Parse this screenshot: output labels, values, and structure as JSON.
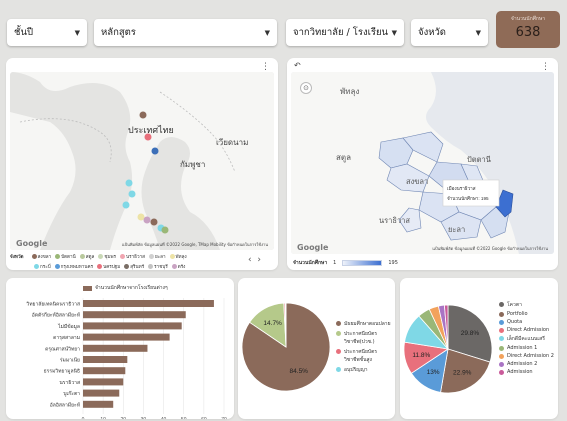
{
  "filters": {
    "level": "ชั้นปี",
    "program": "หลักสูตร",
    "source": "จากวิทยาลัย / โรงเรียน",
    "province": "จังหวัด"
  },
  "kpi": {
    "title": "จำนวนนักศึกษา",
    "value": "638"
  },
  "point_map": {
    "labels": {
      "thailand": "ประเทศไทย",
      "vietnam": "เวียดนาม",
      "cambodia": "กัมพูชา"
    },
    "attribution": "แป้นพิมพ์ลัด  ข้อมูลแผนที่ ©2022 Google, TMap Mobility  ข้อกำหนดในการใช้งาน",
    "google": "Google",
    "legend_title": "จังหวัด",
    "legend": [
      {
        "name": "สงขลา",
        "color": "#8b6a5a"
      },
      {
        "name": "ปัตตานี",
        "color": "#9ab777"
      },
      {
        "name": "สตูล",
        "color": "#b9c99d"
      },
      {
        "name": "ชุมพร",
        "color": "#c9d8b6"
      },
      {
        "name": "นราธิวาส",
        "color": "#f0a5b0"
      },
      {
        "name": "ยะลา",
        "color": "#d0d0d0"
      },
      {
        "name": "พัทลุง",
        "color": "#ede3a6"
      },
      {
        "name": "กระบี่",
        "color": "#7fd8e6"
      },
      {
        "name": "กรุงเทพมหานคร",
        "color": "#5a9bd8"
      },
      {
        "name": "นครปฐม",
        "color": "#e8707c"
      },
      {
        "name": "สุรินทร์",
        "color": "#7a6e66"
      },
      {
        "name": "ราชบุรี",
        "color": "#c3c3c3"
      },
      {
        "name": "ตรัง",
        "color": "#c9a3c3"
      }
    ]
  },
  "choropleth": {
    "labels": {
      "phatthalung": "พัทลุง",
      "satun": "สตูล",
      "songkhla": "สงขลา",
      "pattani": "ปัตตานี",
      "yala": "ยะลา",
      "narathiwat": "นราธิวาส"
    },
    "tooltip_line1": "เมืองนราธิวาส",
    "tooltip_line2": "จำนวนนักศึกษา: 195",
    "attribution": "แป้นพิมพ์ลัด  ข้อมูลแผนที่ ©2022 Google  ข้อกำหนดในการใช้งาน",
    "google": "Google",
    "legend_label": "จำนวนนักศึกษา",
    "legend_min": "1",
    "legend_max": "195"
  },
  "chart_data": [
    {
      "type": "bar",
      "orientation": "horizontal",
      "series_name": "จำนวนนักศึกษาจากโรงเรียนต่างๆ",
      "categories": [
        "วิทยาลัยเทคนิคนราธิวาส",
        "อัตตัรกียะห์อิสลามียะห์",
        "ไม่มีข้อมูล",
        "ดารุสสาลาม",
        "ดรุณศาสน์วิทยา",
        "ร่มมาเน๊ย",
        "ธรรมวิทยามูลนิธิ",
        "นราธิวาส",
        "บูเก๊ะตา",
        "อัลอิสลามียะห์"
      ],
      "values": [
        65,
        51,
        49,
        43,
        32,
        22,
        21,
        20,
        18,
        15
      ],
      "xlim": [
        0,
        70
      ],
      "ticks": [
        0,
        10,
        20,
        30,
        40,
        50,
        60,
        70
      ]
    },
    {
      "type": "pie",
      "slices": [
        {
          "name": "มัธยมศึกษาตอนปลาย",
          "value": 84.5,
          "color": "#8b6a5a",
          "label": "84.5%"
        },
        {
          "name": "ประกาศนียบัตรวิชาชีพ(ปวช.)",
          "value": 14.7,
          "color": "#b5c98a",
          "label": "14.7%"
        },
        {
          "name": "ประกาศนียบัตรวิชาชีพชั้นสูง",
          "value": 0.5,
          "color": "#e8707c",
          "label": ""
        },
        {
          "name": "อนุปริญญา",
          "value": 0.3,
          "color": "#7fd8e6",
          "label": ""
        }
      ]
    },
    {
      "type": "pie",
      "slices": [
        {
          "name": "โควตา",
          "value": 29.8,
          "color": "#6b6866",
          "label": "29.8%"
        },
        {
          "name": "Portfolio",
          "value": 22.9,
          "color": "#8b6a5a",
          "label": "22.9%"
        },
        {
          "name": "Quota",
          "value": 13.0,
          "color": "#5a9bd8",
          "label": "13%"
        },
        {
          "name": "Direct Admission",
          "value": 11.8,
          "color": "#e8707c",
          "label": "11.8%"
        },
        {
          "name": "เล็กดีมีคะแนนเสรี",
          "value": 11.0,
          "color": "#7fd8e6",
          "label": ""
        },
        {
          "name": "Admission 1",
          "value": 4.5,
          "color": "#9ab777",
          "label": ""
        },
        {
          "name": "Direct Admission 2",
          "value": 3.5,
          "color": "#f2a25c",
          "label": ""
        },
        {
          "name": "Admission 2",
          "value": 2.2,
          "color": "#a974c4",
          "label": ""
        },
        {
          "name": "Admission",
          "value": 1.3,
          "color": "#c95b9a",
          "label": ""
        }
      ]
    }
  ]
}
